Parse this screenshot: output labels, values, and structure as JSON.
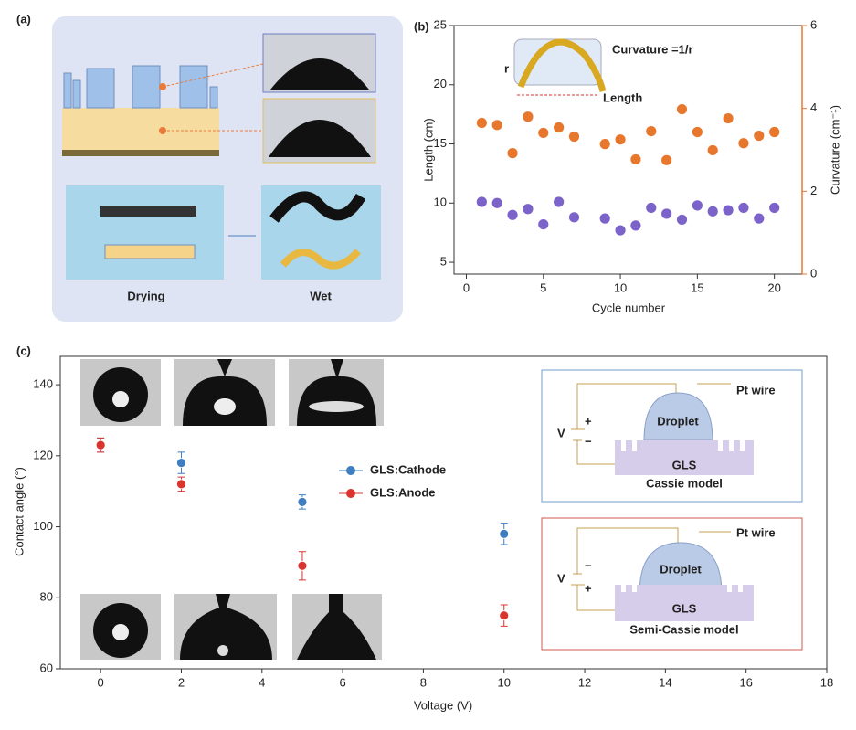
{
  "panel_a": {
    "label": "(a)",
    "captions": [
      "Drying",
      "Wet"
    ]
  },
  "panel_b": {
    "label": "(b)",
    "inset": {
      "formula": "Curvature =1/r",
      "radius": "r",
      "length": "Length"
    }
  },
  "panel_c": {
    "label": "(c)",
    "legend_corner": "center",
    "cassie": {
      "wire": "Pt wire",
      "droplet": "Droplet",
      "substrate": "GLS",
      "model": "Cassie model",
      "voltage": "V",
      "top_sign": "+",
      "bottom_sign": "−"
    },
    "semi_cassie": {
      "wire": "Pt wire",
      "droplet": "Droplet",
      "substrate": "GLS",
      "model": "Semi-Cassie model",
      "voltage": "V",
      "top_sign": "−",
      "bottom_sign": "+"
    }
  },
  "chart_data": [
    {
      "type": "line",
      "x_label": "Cycle number",
      "y_label": "Length (cm)",
      "y2_label": "Curvature (cm⁻¹)",
      "line_style": "dashed",
      "y2_color": "#e8772e",
      "x": [
        1,
        2,
        3,
        4,
        5,
        6,
        7,
        9,
        10,
        11,
        12,
        13,
        14,
        15,
        16,
        17,
        18,
        19,
        20
      ],
      "xlim": [
        -0.8,
        21.8
      ],
      "xticks": [
        0,
        5,
        10,
        15,
        20
      ],
      "ylim": [
        4,
        25
      ],
      "yticks": [
        5,
        10,
        15,
        20,
        25
      ],
      "y2lim": [
        0,
        6
      ],
      "y2ticks": [
        0,
        2,
        4,
        6
      ],
      "series": [
        {
          "color": "#7b63c9",
          "values": [
            10.1,
            10.0,
            9.0,
            9.5,
            8.2,
            10.1,
            8.8,
            8.7,
            7.7,
            8.1,
            9.6,
            9.1,
            8.6,
            9.8,
            9.3,
            9.4,
            9.6,
            8.7,
            9.6
          ]
        },
        {
          "color": "#e8772e",
          "axis": "y2",
          "values": [
            3.65,
            3.6,
            2.92,
            3.8,
            3.41,
            3.54,
            3.32,
            3.14,
            3.25,
            2.77,
            3.45,
            2.75,
            3.98,
            3.43,
            2.99,
            3.76,
            3.16,
            3.34,
            3.43
          ]
        }
      ]
    },
    {
      "type": "line",
      "x_label": "Voltage (V)",
      "y_label": "Contact angle (°)",
      "line_style": "solid",
      "x": [
        0,
        2,
        5,
        10
      ],
      "xlim": [
        -1,
        18
      ],
      "xticks": [
        0,
        2,
        4,
        6,
        8,
        10,
        12,
        14,
        16,
        18
      ],
      "ylim": [
        60,
        148
      ],
      "yticks": [
        60,
        80,
        100,
        120,
        140
      ],
      "series": [
        {
          "name": "GLS:Cathode",
          "color": "#3f7fc0",
          "values": [
            123,
            118,
            107,
            98
          ],
          "errors": [
            2,
            3,
            2,
            3
          ]
        },
        {
          "name": "GLS:Anode",
          "color": "#d9352e",
          "values": [
            123,
            112,
            89,
            75
          ],
          "errors": [
            2,
            2,
            4,
            3
          ]
        }
      ]
    }
  ]
}
